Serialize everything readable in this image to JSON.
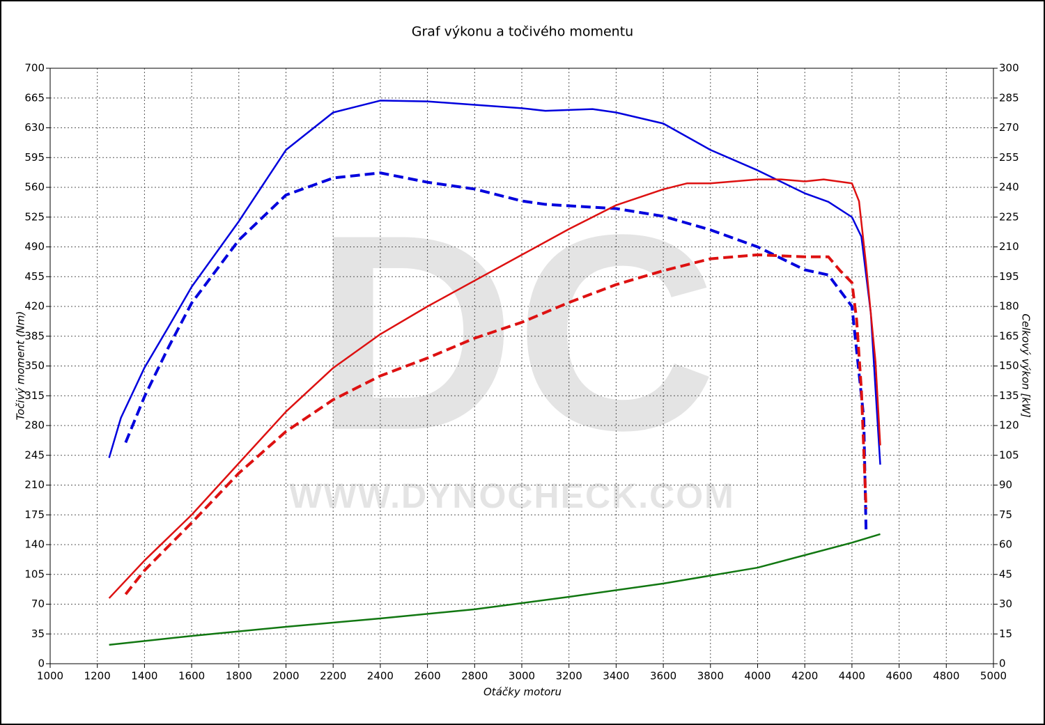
{
  "chart_data": {
    "type": "line",
    "title": "Graf výkonu a točivého momentu",
    "xlabel": "Otáčky motoru",
    "ylabel": "Točivý moment (Nm)",
    "y2label": "Celkový výkon [kW]",
    "watermark": "DC",
    "watermark_url": "WWW.DYNOCHECK.COM",
    "xlim": [
      1000,
      5000
    ],
    "xticks": [
      1000,
      1200,
      1400,
      1600,
      1800,
      2000,
      2200,
      2400,
      2600,
      2800,
      3000,
      3200,
      3400,
      3600,
      3800,
      4000,
      4200,
      4400,
      4600,
      4800,
      5000
    ],
    "ylim": [
      0,
      700
    ],
    "yticks": [
      0,
      35,
      70,
      105,
      140,
      175,
      210,
      245,
      280,
      315,
      350,
      385,
      420,
      455,
      490,
      525,
      560,
      595,
      630,
      665,
      700
    ],
    "y2lim": [
      0,
      300
    ],
    "y2ticks": [
      0,
      15,
      30,
      45,
      60,
      75,
      90,
      105,
      120,
      135,
      150,
      165,
      180,
      195,
      210,
      225,
      240,
      255,
      270,
      285,
      300
    ],
    "grid": true,
    "series": [
      {
        "color": "#0000dd",
        "dash": false,
        "x": [
          1250,
          1300,
          1400,
          1500,
          1600,
          1800,
          2000,
          2200,
          2400,
          2600,
          2800,
          3000,
          3100,
          3300,
          3400,
          3600,
          3800,
          4000,
          4200,
          4300,
          4400,
          4440,
          4480,
          4500,
          4520
        ],
        "values": [
          242,
          289,
          348,
          395,
          443,
          520,
          604,
          648,
          662,
          661,
          657,
          653,
          650,
          652,
          648,
          635,
          604,
          580,
          553,
          543,
          525,
          502,
          412,
          322,
          234
        ]
      },
      {
        "color": "#0000dd",
        "dash": true,
        "x": [
          1320,
          1400,
          1500,
          1600,
          1800,
          2000,
          2200,
          2400,
          2600,
          2800,
          3000,
          3100,
          3400,
          3600,
          3800,
          4000,
          4200,
          4300,
          4400,
          4450,
          4460
        ],
        "values": [
          260,
          314,
          371,
          424,
          498,
          551,
          571,
          577,
          566,
          558,
          544,
          540,
          535,
          526,
          510,
          490,
          463,
          457,
          420,
          289,
          154
        ]
      },
      {
        "color": "#dd1111",
        "dash": false,
        "axis": "y2",
        "x": [
          1250,
          1400,
          1600,
          1800,
          2000,
          2200,
          2400,
          2600,
          2800,
          3000,
          3200,
          3400,
          3600,
          3700,
          3800,
          4000,
          4100,
          4200,
          4280,
          4400,
          4430,
          4460,
          4500,
          4520
        ],
        "values": [
          33,
          52,
          75,
          101,
          127,
          149,
          166,
          180,
          193,
          206,
          219,
          231,
          239,
          242,
          242,
          244,
          244,
          243,
          244,
          242,
          233,
          201,
          152,
          110
        ]
      },
      {
        "color": "#dd1111",
        "dash": true,
        "axis": "y2",
        "x": [
          1320,
          1400,
          1600,
          1800,
          2000,
          2200,
          2400,
          2600,
          2800,
          3000,
          3200,
          3400,
          3600,
          3800,
          4000,
          4200,
          4300,
          4350,
          4400,
          4420,
          4440,
          4460
        ],
        "values": [
          35,
          47,
          71,
          96,
          117,
          133,
          145,
          154,
          164,
          172,
          182,
          191,
          198,
          204,
          206,
          205,
          205,
          198,
          192,
          173,
          138,
          78
        ]
      },
      {
        "color": "#117711",
        "dash": false,
        "axis": "y2",
        "x": [
          1250,
          1600,
          2000,
          2400,
          2800,
          3200,
          3600,
          4000,
          4200,
          4400,
          4520
        ],
        "values": [
          9.5,
          14,
          18.6,
          22.8,
          27.4,
          33.7,
          40.4,
          48.4,
          54.7,
          61,
          65.3
        ]
      }
    ]
  }
}
